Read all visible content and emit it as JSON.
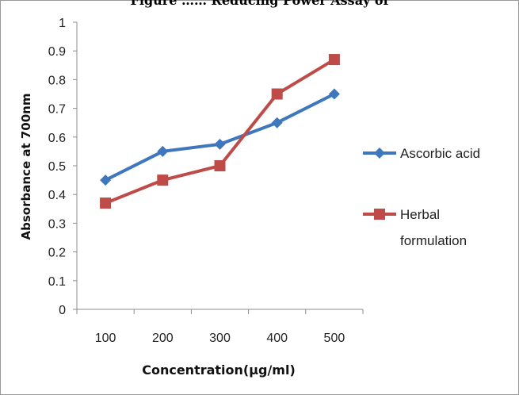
{
  "cut_title": "Figure …… Reducing Power Assay of",
  "chart_data": {
    "type": "line",
    "title": "",
    "xlabel": "Concentration(µg/ml)",
    "ylabel": "Absorbance at 700nm",
    "categories": [
      "100",
      "200",
      "300",
      "400",
      "500"
    ],
    "y_ticks": [
      "0",
      "0.1",
      "0.2",
      "0.3",
      "0.4",
      "0.5",
      "0.6",
      "0.7",
      "0.8",
      "0.9",
      "1"
    ],
    "ylim": [
      0,
      1
    ],
    "grid": false,
    "legend_position": "right",
    "series": [
      {
        "name": "Ascorbic acid",
        "values": [
          0.45,
          0.55,
          0.575,
          0.65,
          0.75
        ],
        "color": "#3f77bd",
        "marker": "diamond"
      },
      {
        "name": "Herbal formulation",
        "legend_lines": [
          "Herbal",
          "formulation"
        ],
        "values": [
          0.37,
          0.45,
          0.5,
          0.75,
          0.87
        ],
        "color": "#be4b48",
        "marker": "square"
      }
    ]
  }
}
